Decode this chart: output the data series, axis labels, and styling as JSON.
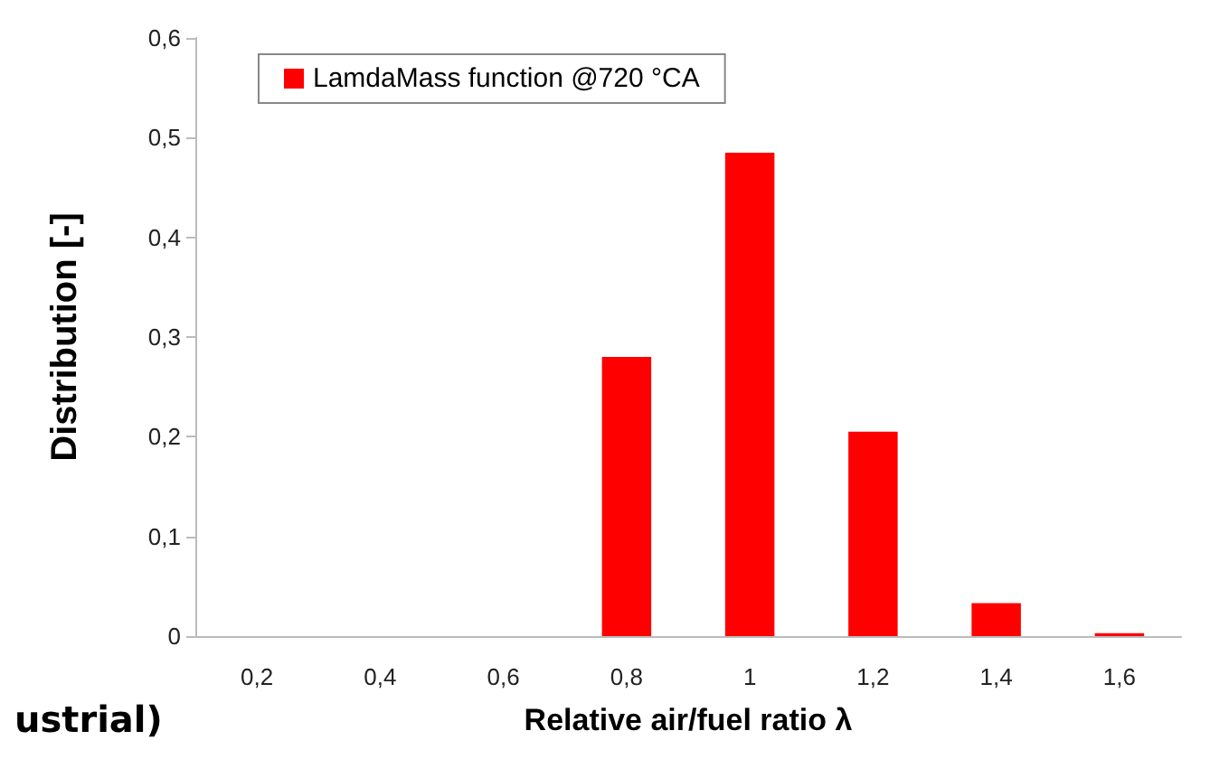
{
  "chart_data": {
    "type": "bar",
    "xlabel": "Relative air/fuel ratio λ",
    "ylabel": "Distribution [-]",
    "categories": [
      "0,2",
      "0,4",
      "0,6",
      "0,8",
      "1",
      "1,2",
      "1,4",
      "1,6"
    ],
    "series": [
      {
        "name": "LamdaMass function @720 °CA",
        "color": "#ff0000",
        "values": [
          0,
          0,
          0,
          0.28,
          0.485,
          0.205,
          0.033,
          0.003
        ]
      }
    ],
    "ylim": [
      0,
      0.6
    ],
    "yticks": [
      0,
      {
        "value": 0.1,
        "label": "0,1"
      },
      {
        "value": 0.2,
        "label": "0,2"
      },
      {
        "value": 0.3,
        "label": "0,3"
      },
      {
        "value": 0.4,
        "label": "0,4"
      },
      {
        "value": 0.5,
        "label": "0,5"
      },
      {
        "value": 0.6,
        "label": "0,6"
      }
    ],
    "grid": false,
    "legend": "top left",
    "annotations": [
      "ustrial)"
    ]
  }
}
